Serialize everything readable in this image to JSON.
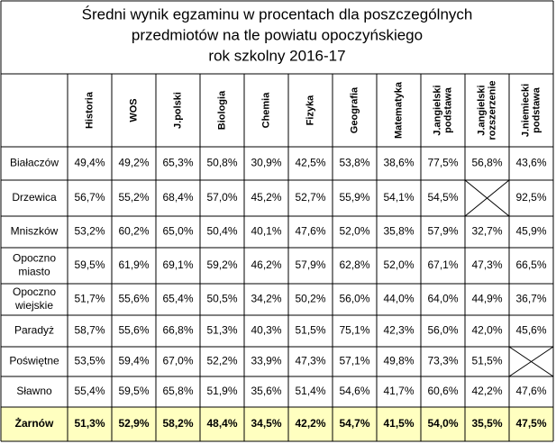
{
  "title": [
    "Średni wynik egzaminu w procentach dla poszczególnych",
    "przedmiotów na tle powiatu opoczyńskiego",
    "rok szkolny 2016-17"
  ],
  "table": {
    "columns": [
      [
        "Historia"
      ],
      [
        "WOS"
      ],
      [
        "J.polski"
      ],
      [
        "Biologia"
      ],
      [
        "Chemia"
      ],
      [
        "Fizyka"
      ],
      [
        "Geografia"
      ],
      [
        "Matematyka"
      ],
      [
        "J.angielski",
        "podstawa"
      ],
      [
        "J.angielski",
        "rozszerzenie"
      ],
      [
        "J.niemiecki",
        "podstawa"
      ]
    ],
    "rows": [
      {
        "label": [
          "Białaczów"
        ],
        "cells": [
          "49,4%",
          "49,2%",
          "65,3%",
          "50,8%",
          "30,9%",
          "42,5%",
          "53,8%",
          "38,6%",
          "77,5%",
          "56,8%",
          "43,6%"
        ]
      },
      {
        "label": [
          "Drzewica"
        ],
        "cells": [
          "56,7%",
          "55,2%",
          "68,4%",
          "57,0%",
          "45,2%",
          "52,7%",
          "55,9%",
          "54,1%",
          "54,5%",
          null,
          "92,5%"
        ]
      },
      {
        "label": [
          "Mniszków"
        ],
        "cells": [
          "53,2%",
          "60,2%",
          "65,0%",
          "50,4%",
          "40,1%",
          "47,6%",
          "52,0%",
          "35,8%",
          "57,9%",
          "32,7%",
          "45,9%"
        ]
      },
      {
        "label": [
          "Opoczno",
          "miasto"
        ],
        "cells": [
          "59,5%",
          "61,9%",
          "69,1%",
          "59,2%",
          "46,2%",
          "57,9%",
          "62,8%",
          "52,0%",
          "67,1%",
          "47,3%",
          "66,5%"
        ]
      },
      {
        "label": [
          "Opoczno",
          "wiejskie"
        ],
        "cells": [
          "51,7%",
          "55,6%",
          "65,4%",
          "50,5%",
          "34,2%",
          "50,2%",
          "56,0%",
          "44,0%",
          "64,0%",
          "44,9%",
          "36,7%"
        ]
      },
      {
        "label": [
          "Paradyż"
        ],
        "cells": [
          "58,7%",
          "55,6%",
          "66,8%",
          "51,3%",
          "40,3%",
          "51,5%",
          "75,1%",
          "42,3%",
          "56,0%",
          "42,0%",
          "45,6%"
        ]
      },
      {
        "label": [
          "Poświętne"
        ],
        "cells": [
          "53,5%",
          "59,4%",
          "67,0%",
          "52,2%",
          "33,9%",
          "47,3%",
          "57,1%",
          "49,8%",
          "73,3%",
          "51,5%",
          null
        ]
      },
      {
        "label": [
          "Sławno"
        ],
        "cells": [
          "55,4%",
          "59,5%",
          "65,8%",
          "51,9%",
          "35,6%",
          "51,4%",
          "54,6%",
          "41,7%",
          "60,6%",
          "42,2%",
          "47,6%"
        ]
      },
      {
        "label": [
          "Żarnów"
        ],
        "cells": [
          "51,3%",
          "52,9%",
          "58,2%",
          "48,4%",
          "34,5%",
          "42,2%",
          "54,7%",
          "41,5%",
          "54,0%",
          "35,5%",
          "47,5%"
        ]
      }
    ]
  }
}
